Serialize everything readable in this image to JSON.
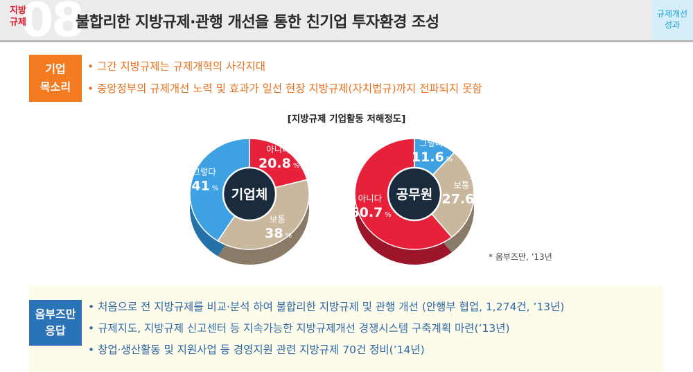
{
  "header": {
    "category": [
      "지방",
      "규제"
    ],
    "number": "08",
    "title": "불합리한 지방규제·관행 개선을 통한 친기업 투자환경 조성",
    "side_tab": [
      "규제개선",
      "성과"
    ]
  },
  "voice": {
    "label": [
      "기업",
      "목소리"
    ],
    "items": [
      "그간 지방규제는 규제개혁의 사각지대",
      "중앙정부의 규제개선 노력 및 효과가 일선 현장 지방규제(자치법규)까지 전파되지 못함"
    ]
  },
  "chart_section_title": "[지방규제 기업활동 저해정도]",
  "chart_data": [
    {
      "type": "pie",
      "center_label": "기업체",
      "unit": "%",
      "categories": [
        "아니다",
        "보통",
        "그렇다"
      ],
      "values": [
        20.8,
        38,
        41
      ],
      "value_labels": [
        "20.8",
        "38",
        "41"
      ],
      "colors": [
        "#e8213b",
        "#c9b89e",
        "#3ea1e2"
      ],
      "side_colors": [
        "#9a1628",
        "#8a7a68",
        "#2572a8"
      ]
    },
    {
      "type": "pie",
      "center_label": "공무원",
      "unit": "%",
      "categories": [
        "그렇다",
        "보통",
        "아니다"
      ],
      "values": [
        11.6,
        27.6,
        60.7
      ],
      "value_labels": [
        "11.6",
        "27.6",
        "60.7"
      ],
      "colors": [
        "#3ea1e2",
        "#c9b89e",
        "#e8213b"
      ],
      "side_colors": [
        "#2572a8",
        "#8a7a68",
        "#9a1628"
      ]
    }
  ],
  "source_note": "* 옴부즈만, ’13년",
  "answer": {
    "label": [
      "옴부즈만",
      "응답"
    ],
    "items": [
      "처음으로 전 지방규제를 비교·분석 하여 불합리한 지방규제 및 관행 개선 (안행부 협업, 1,274건, ’13년)",
      "규제지도, 지방규제 신고센터 등 지속가능한 지방규제개선 경쟁시스템 구축계획 마련(’13년)",
      "창업·생산활동 및 지원사업 등 경영지원 관련 지방규제 70건 정비(’14년)"
    ]
  }
}
